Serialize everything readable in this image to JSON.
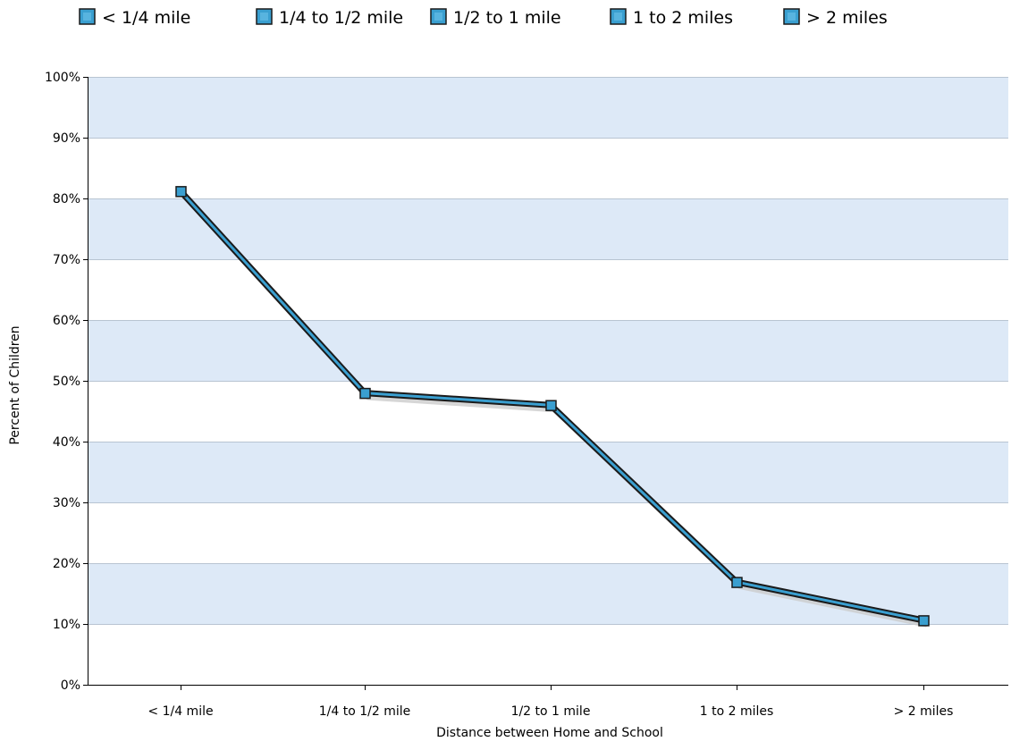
{
  "chart_data": {
    "type": "line",
    "title": "",
    "xlabel": "Distance between Home and School",
    "ylabel": "Percent of Children",
    "categories": [
      "< 1/4 mile",
      "1/4 to 1/2 mile",
      "1/2 to 1 mile",
      "1 to 2 miles",
      "> 2 miles"
    ],
    "series": [
      {
        "values": [
          81.2,
          48.0,
          46.0,
          16.9,
          10.6
        ]
      }
    ],
    "ylim": [
      0,
      100
    ],
    "yticks": [
      "0%",
      "10%",
      "20%",
      "30%",
      "40%",
      "50%",
      "60%",
      "70%",
      "80%",
      "90%",
      "100%"
    ],
    "legend": {
      "position": "top",
      "entries": [
        "< 1/4 mile",
        "1/4 to 1/2 mile",
        "1/2 to 1 mile",
        "1 to 2 miles",
        "> 2 miles"
      ]
    },
    "grid": true,
    "colors": {
      "line": "#3a9fd0",
      "line_outline": "#1a1a1a",
      "marker": "#3a9fd0",
      "band": "#dde9f7",
      "gridline": "#b8c4d2",
      "shadow": "#cccccc"
    }
  }
}
